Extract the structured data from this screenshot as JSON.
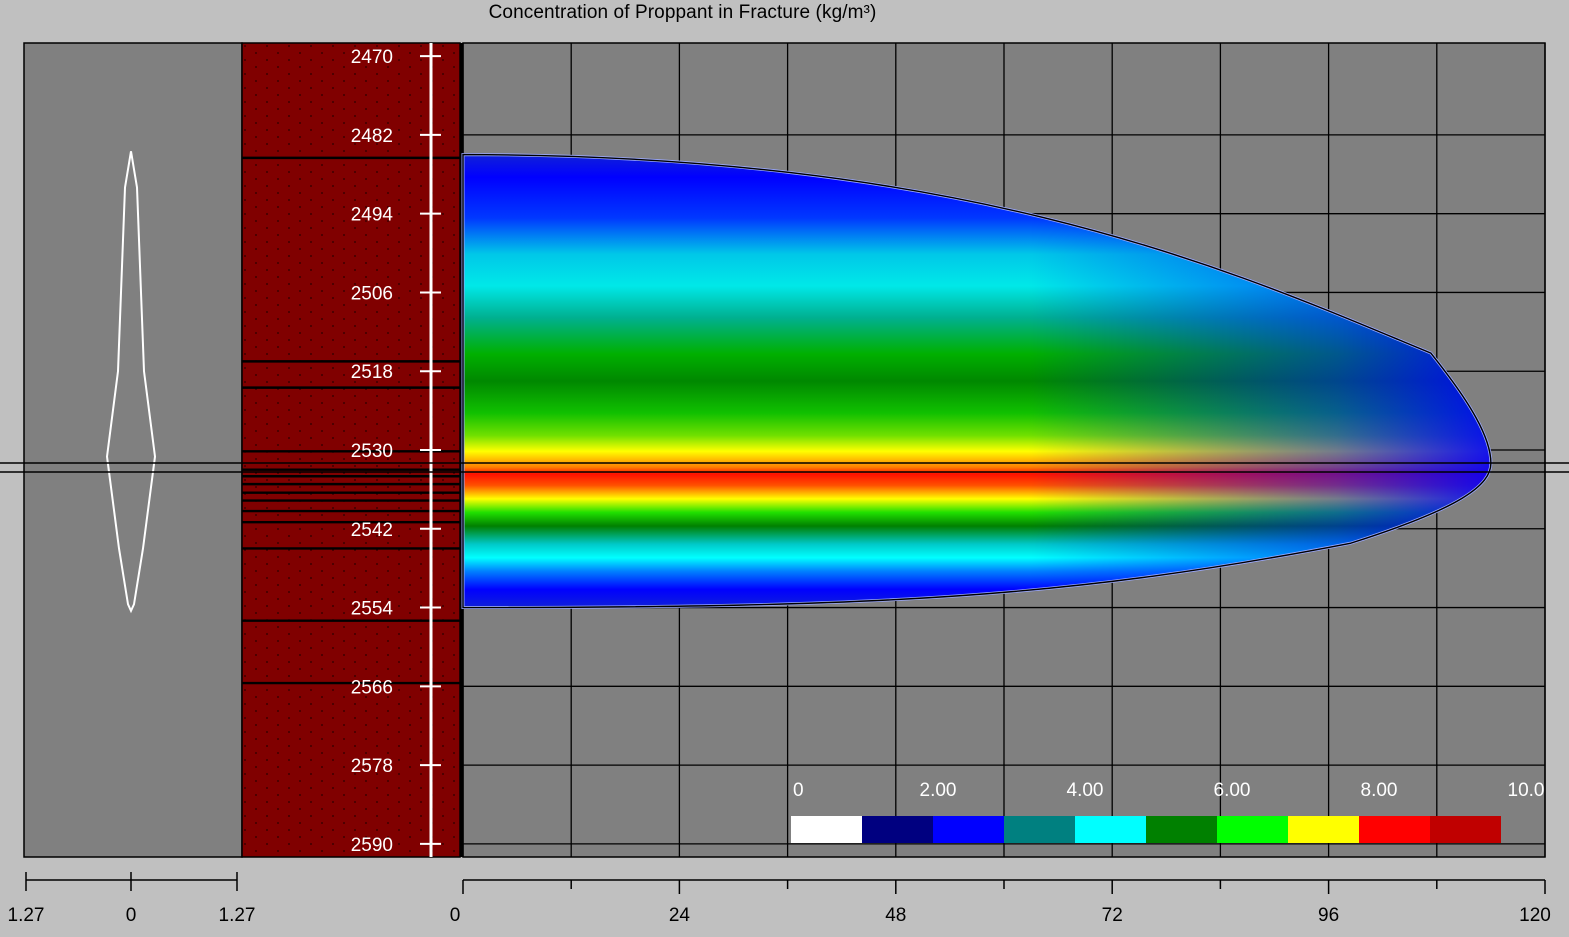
{
  "title": "Concentration of Proppant in Fracture (kg/m³)",
  "chart_data": {
    "type": "heatmap",
    "title": "Concentration of Proppant in Fracture (kg/m³)",
    "depth_axis": {
      "ticks": [
        2470,
        2482,
        2494,
        2506,
        2518,
        2530,
        2542,
        2554,
        2566,
        2578,
        2590
      ],
      "range": [
        2468,
        2592
      ]
    },
    "x_axis": {
      "ticks": [
        0,
        24,
        48,
        72,
        96,
        120
      ],
      "range": [
        0,
        120
      ]
    },
    "width_profile_axis": {
      "ticks": [
        "1.27",
        "0",
        "1.27"
      ]
    },
    "colorbar": {
      "labels": [
        "0",
        "2.00",
        "4.00",
        "6.00",
        "8.00",
        "10.0"
      ],
      "range": [
        0,
        10
      ],
      "colors": [
        "#ffffff",
        "#000080",
        "#0000ff",
        "#008080",
        "#00ffff",
        "#008000",
        "#00ff00",
        "#ffff00",
        "#ff0000",
        "#c00000"
      ]
    },
    "fracture": {
      "top_depth": 2485,
      "bottom_depth": 2554,
      "max_length": 114,
      "tip_depth": 2532
    },
    "grid": true
  },
  "colors": {
    "background": "#c0c0c0",
    "plot_bg": "#808080",
    "lithology": "#800000",
    "grid": "#000000"
  }
}
